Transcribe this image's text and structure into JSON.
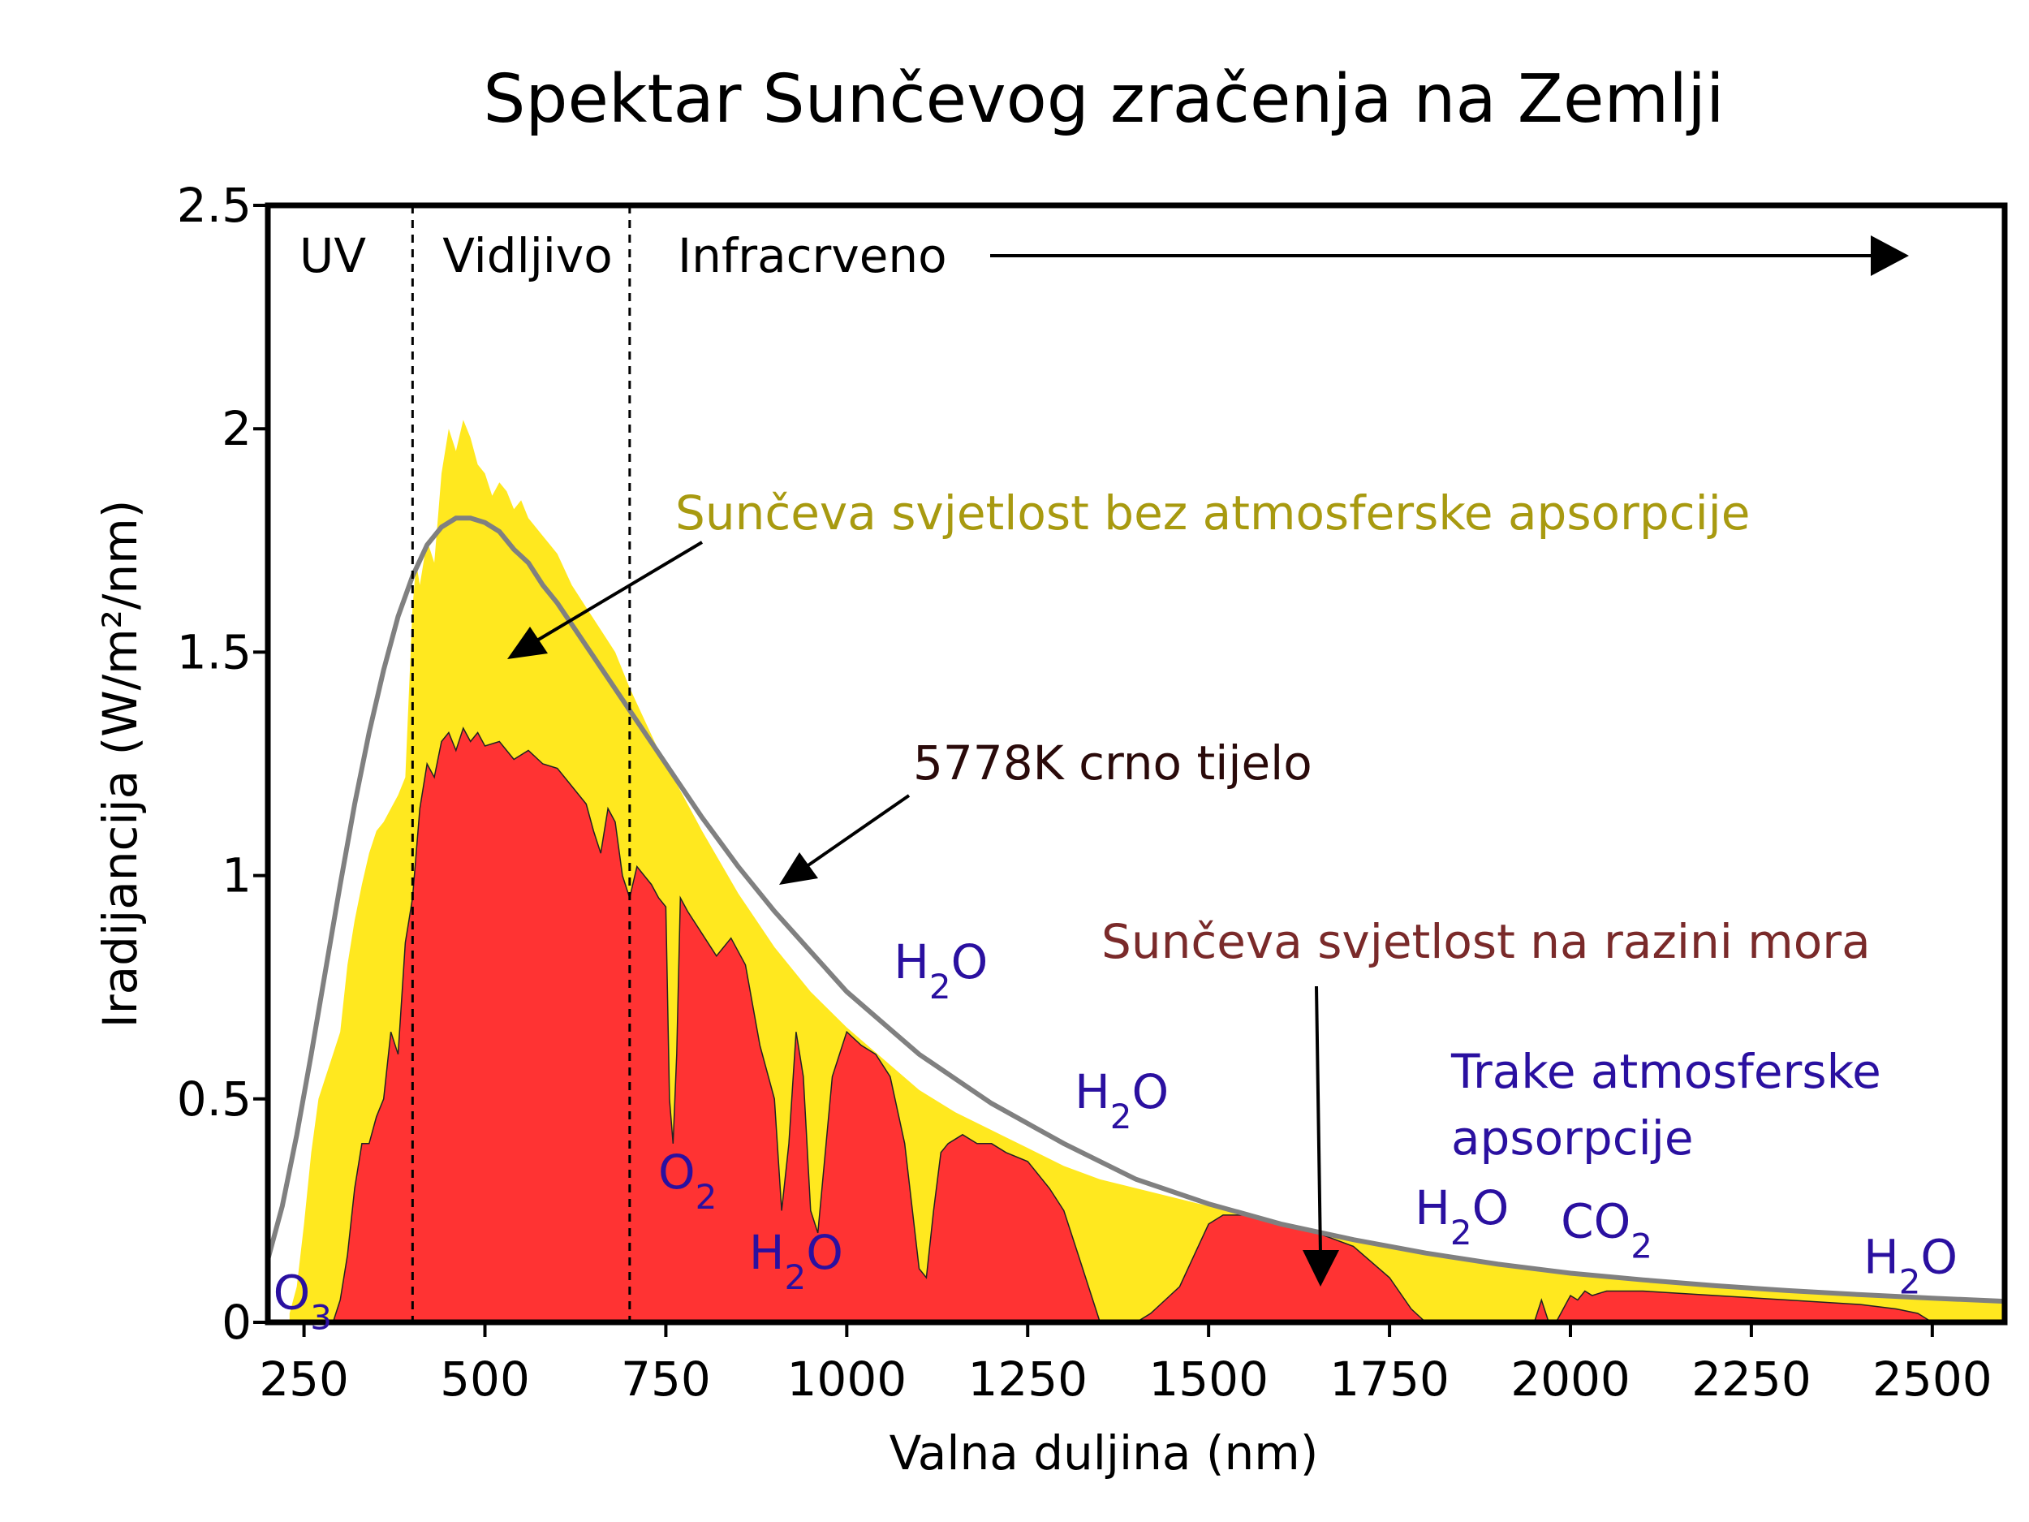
{
  "chart_data": {
    "type": "area",
    "title": "Spektar Sunčevog zračenja na Zemlji",
    "xlabel": "Valna duljina (nm)",
    "ylabel": "Iradijancija (W/m²/nm)",
    "xlim": [
      200,
      2600
    ],
    "ylim": [
      0,
      2.5
    ],
    "x_ticks": [
      250,
      500,
      750,
      1000,
      1250,
      1500,
      1750,
      2000,
      2250,
      2500
    ],
    "y_ticks": [
      0,
      0.5,
      1,
      1.5,
      2,
      2.5
    ],
    "y_tick_labels": [
      "0",
      "0.5",
      "1",
      "1.5",
      "2",
      "2.5"
    ],
    "grid": false,
    "regions": {
      "uv": "UV",
      "visible": "Vidljivo",
      "infrared": "Infracrveno",
      "boundaries": [
        400,
        700
      ]
    },
    "series": [
      {
        "name": "Sunčeva svjetlost bez atmosferske apsorpcije",
        "color": "#ffe81f",
        "x": [
          230,
          240,
          250,
          260,
          270,
          280,
          290,
          300,
          310,
          320,
          330,
          340,
          350,
          360,
          370,
          380,
          390,
          400,
          405,
          410,
          420,
          430,
          440,
          450,
          460,
          470,
          480,
          490,
          500,
          510,
          520,
          530,
          540,
          550,
          560,
          570,
          580,
          590,
          600,
          620,
          640,
          660,
          680,
          700,
          720,
          740,
          760,
          780,
          800,
          850,
          900,
          950,
          1000,
          1050,
          1100,
          1150,
          1200,
          1250,
          1300,
          1350,
          1400,
          1450,
          1500,
          1550,
          1600,
          1650,
          1700,
          1750,
          1800,
          1850,
          1900,
          1950,
          2000,
          2100,
          2200,
          2300,
          2400,
          2500,
          2600
        ],
        "y": [
          0.02,
          0.08,
          0.22,
          0.38,
          0.5,
          0.55,
          0.6,
          0.65,
          0.8,
          0.9,
          0.98,
          1.05,
          1.1,
          1.12,
          1.15,
          1.18,
          1.22,
          1.6,
          1.7,
          1.65,
          1.75,
          1.7,
          1.9,
          2.0,
          1.95,
          2.02,
          1.98,
          1.92,
          1.9,
          1.85,
          1.88,
          1.86,
          1.82,
          1.84,
          1.8,
          1.78,
          1.76,
          1.74,
          1.72,
          1.65,
          1.6,
          1.55,
          1.5,
          1.42,
          1.35,
          1.28,
          1.22,
          1.16,
          1.1,
          0.96,
          0.84,
          0.74,
          0.66,
          0.59,
          0.52,
          0.47,
          0.43,
          0.39,
          0.35,
          0.32,
          0.3,
          0.28,
          0.26,
          0.24,
          0.22,
          0.2,
          0.185,
          0.17,
          0.155,
          0.145,
          0.135,
          0.12,
          0.11,
          0.095,
          0.08,
          0.07,
          0.06,
          0.055,
          0.05
        ]
      },
      {
        "name": "Sunčeva svjetlost na razini mora",
        "color": "#ff3333",
        "x": [
          290,
          300,
          310,
          320,
          330,
          340,
          350,
          360,
          370,
          380,
          390,
          395,
          400,
          410,
          420,
          430,
          440,
          450,
          460,
          470,
          480,
          490,
          500,
          520,
          540,
          560,
          580,
          600,
          620,
          640,
          650,
          660,
          670,
          680,
          690,
          700,
          710,
          720,
          730,
          740,
          750,
          755,
          760,
          765,
          770,
          780,
          800,
          820,
          840,
          860,
          880,
          900,
          910,
          920,
          930,
          940,
          950,
          960,
          980,
          1000,
          1020,
          1040,
          1060,
          1080,
          1100,
          1110,
          1120,
          1130,
          1140,
          1150,
          1160,
          1180,
          1200,
          1220,
          1250,
          1280,
          1300,
          1320,
          1340,
          1350,
          1370,
          1400,
          1420,
          1440,
          1460,
          1480,
          1500,
          1520,
          1550,
          1580,
          1600,
          1650,
          1700,
          1750,
          1780,
          1800,
          1950,
          1960,
          1970,
          1980,
          1990,
          2000,
          2010,
          2020,
          2030,
          2040,
          2050,
          2100,
          2200,
          2300,
          2400,
          2450,
          2480,
          2490,
          2500
        ],
        "y": [
          0.0,
          0.05,
          0.15,
          0.3,
          0.4,
          0.4,
          0.46,
          0.5,
          0.65,
          0.6,
          0.85,
          0.9,
          0.95,
          1.15,
          1.25,
          1.22,
          1.3,
          1.32,
          1.28,
          1.33,
          1.3,
          1.32,
          1.29,
          1.3,
          1.26,
          1.28,
          1.25,
          1.24,
          1.2,
          1.16,
          1.1,
          1.05,
          1.15,
          1.12,
          1.0,
          0.95,
          1.02,
          1.0,
          0.98,
          0.95,
          0.93,
          0.5,
          0.4,
          0.6,
          0.95,
          0.92,
          0.87,
          0.82,
          0.86,
          0.8,
          0.62,
          0.5,
          0.25,
          0.4,
          0.65,
          0.55,
          0.25,
          0.2,
          0.55,
          0.65,
          0.62,
          0.6,
          0.55,
          0.4,
          0.12,
          0.1,
          0.25,
          0.38,
          0.4,
          0.41,
          0.42,
          0.4,
          0.4,
          0.38,
          0.36,
          0.3,
          0.25,
          0.15,
          0.05,
          0.0,
          0.0,
          0.0,
          0.02,
          0.05,
          0.08,
          0.15,
          0.22,
          0.24,
          0.24,
          0.23,
          0.22,
          0.2,
          0.17,
          0.1,
          0.03,
          0.0,
          0.0,
          0.05,
          0.0,
          0.0,
          0.03,
          0.06,
          0.05,
          0.07,
          0.06,
          0.065,
          0.07,
          0.07,
          0.06,
          0.05,
          0.04,
          0.03,
          0.02,
          0.01,
          0.0
        ]
      },
      {
        "name": "5778K crno tijelo",
        "color": "#808080",
        "x": [
          200,
          220,
          240,
          260,
          280,
          300,
          320,
          340,
          360,
          380,
          400,
          420,
          440,
          460,
          480,
          500,
          520,
          540,
          560,
          580,
          600,
          650,
          700,
          750,
          800,
          850,
          900,
          950,
          1000,
          1100,
          1200,
          1300,
          1400,
          1500,
          1600,
          1700,
          1800,
          1900,
          2000,
          2100,
          2200,
          2300,
          2400,
          2500,
          2600
        ],
        "y": [
          0.14,
          0.26,
          0.42,
          0.6,
          0.79,
          0.98,
          1.16,
          1.32,
          1.46,
          1.58,
          1.67,
          1.74,
          1.78,
          1.8,
          1.8,
          1.79,
          1.77,
          1.73,
          1.7,
          1.65,
          1.61,
          1.49,
          1.37,
          1.25,
          1.13,
          1.02,
          0.92,
          0.83,
          0.74,
          0.6,
          0.49,
          0.4,
          0.32,
          0.265,
          0.22,
          0.185,
          0.155,
          0.13,
          0.11,
          0.095,
          0.082,
          0.071,
          0.062,
          0.054,
          0.047
        ]
      }
    ],
    "annotations": {
      "extraterrestrial": "Sunčeva svjetlost bez atmosferske apsorpcije",
      "blackbody": "5778K crno tijelo",
      "sea_level": "Sunčeva svjetlost na razini mora",
      "bands_title_line1": "Trake atmosferske",
      "bands_title_line2": "apsorpcije"
    },
    "absorbers": [
      {
        "base": "O",
        "sub": "3",
        "x": 248,
        "y": 0.03
      },
      {
        "base": "O",
        "sub": "2",
        "x": 780,
        "y": 0.3
      },
      {
        "base": "H",
        "sub": "2",
        "tail": "O",
        "x": 930,
        "y": 0.12
      },
      {
        "base": "H",
        "sub": "2",
        "tail": "O",
        "x": 1130,
        "y": 0.77
      },
      {
        "base": "H",
        "sub": "2",
        "tail": "O",
        "x": 1380,
        "y": 0.48
      },
      {
        "base": "H",
        "sub": "2",
        "tail": "O",
        "x": 1850,
        "y": 0.22
      },
      {
        "base": "CO",
        "sub": "2",
        "x": 2050,
        "y": 0.19
      },
      {
        "base": "H",
        "sub": "2",
        "tail": "O",
        "x": 2470,
        "y": 0.11
      }
    ],
    "colors": {
      "axis": "#000000",
      "extraterrestrial_label": "#a89a10",
      "blackbody_label": "#2a0a0a",
      "sea_level_label": "#7a2a2a",
      "absorber_label": "#2a10a0"
    }
  }
}
